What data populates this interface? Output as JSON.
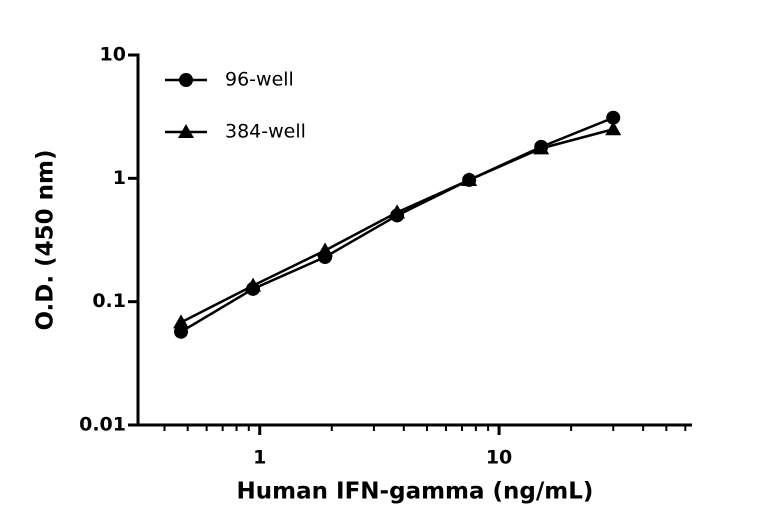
{
  "chart_data": {
    "type": "line",
    "x_label": "Human IFN-gamma (ng/mL)",
    "y_label": "O.D. (450 nm)",
    "x": [
      0.469,
      0.938,
      1.875,
      3.75,
      7.5,
      15,
      30
    ],
    "series": [
      {
        "name": "96-well",
        "color": "#000000",
        "marker": "circle",
        "values": [
          0.057,
          0.127,
          0.23,
          0.5,
          0.97,
          1.8,
          3.1
        ]
      },
      {
        "name": "384-well",
        "color": "#000000",
        "marker": "triangle",
        "values": [
          0.068,
          0.135,
          0.26,
          0.53,
          0.97,
          1.75,
          2.5
        ]
      }
    ],
    "xscale": "log",
    "yscale": "log",
    "xlim": [
      0.31,
      64
    ],
    "ylim": [
      0.01,
      10
    ],
    "xticks": [
      1,
      10
    ],
    "xminorticks": [
      0.4,
      0.5,
      0.6,
      0.7,
      0.8,
      0.9,
      2,
      3,
      4,
      5,
      6,
      7,
      8,
      9,
      20,
      30,
      40,
      50,
      60
    ],
    "yticks": [
      0.01,
      0.1,
      1,
      10
    ],
    "legend": "upper left"
  }
}
